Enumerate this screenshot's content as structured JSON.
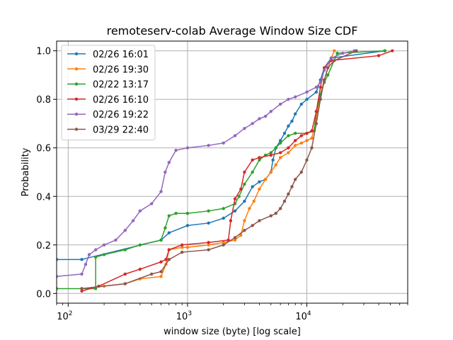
{
  "chart_data": {
    "type": "line",
    "title": "remoteserv-colab Average Window Size CDF",
    "xlabel": "window size (byte) [log scale]",
    "ylabel": "Probability",
    "xscale": "log",
    "xlim": [
      80,
      70000
    ],
    "ylim": [
      -0.04,
      1.04
    ],
    "xticks": [
      {
        "value": 100,
        "base": "10",
        "exp": "2"
      },
      {
        "value": 1000,
        "base": "10",
        "exp": "3"
      },
      {
        "value": 10000,
        "base": "10",
        "exp": "4"
      }
    ],
    "yticks": [
      {
        "value": 0.0,
        "label": "0.0"
      },
      {
        "value": 0.2,
        "label": "0.2"
      },
      {
        "value": 0.4,
        "label": "0.4"
      },
      {
        "value": 0.6,
        "label": "0.6"
      },
      {
        "value": 0.8,
        "label": "0.8"
      },
      {
        "value": 1.0,
        "label": "1.0"
      }
    ],
    "grid": true,
    "legend_position": "top-left",
    "series": [
      {
        "name": "02/26 16:01",
        "color": "#1f77b4",
        "points": [
          [
            80,
            0.14
          ],
          [
            130,
            0.14
          ],
          [
            600,
            0.22
          ],
          [
            700,
            0.25
          ],
          [
            1000,
            0.28
          ],
          [
            1500,
            0.29
          ],
          [
            2000,
            0.31
          ],
          [
            2500,
            0.34
          ],
          [
            3000,
            0.38
          ],
          [
            3500,
            0.44
          ],
          [
            4000,
            0.46
          ],
          [
            4500,
            0.47
          ],
          [
            5000,
            0.5
          ],
          [
            5200,
            0.55
          ],
          [
            5500,
            0.6
          ],
          [
            6000,
            0.63
          ],
          [
            6500,
            0.66
          ],
          [
            7000,
            0.69
          ],
          [
            7500,
            0.71
          ],
          [
            8000,
            0.74
          ],
          [
            9000,
            0.78
          ],
          [
            10000,
            0.8
          ],
          [
            12000,
            0.83
          ],
          [
            13000,
            0.88
          ],
          [
            14000,
            0.93
          ],
          [
            16000,
            0.97
          ],
          [
            45000,
            1.0
          ]
        ]
      },
      {
        "name": "02/26 19:30",
        "color": "#ff7f0e",
        "points": [
          [
            130,
            0.02
          ],
          [
            200,
            0.03
          ],
          [
            300,
            0.04
          ],
          [
            400,
            0.06
          ],
          [
            600,
            0.07
          ],
          [
            660,
            0.12
          ],
          [
            700,
            0.18
          ],
          [
            900,
            0.19
          ],
          [
            1000,
            0.19
          ],
          [
            1500,
            0.2
          ],
          [
            2000,
            0.21
          ],
          [
            2500,
            0.22
          ],
          [
            2800,
            0.24
          ],
          [
            3000,
            0.3
          ],
          [
            3300,
            0.35
          ],
          [
            3600,
            0.38
          ],
          [
            4000,
            0.43
          ],
          [
            4500,
            0.47
          ],
          [
            5000,
            0.5
          ],
          [
            5500,
            0.53
          ],
          [
            6000,
            0.56
          ],
          [
            7000,
            0.58
          ],
          [
            8000,
            0.61
          ],
          [
            9000,
            0.62
          ],
          [
            10000,
            0.63
          ],
          [
            11000,
            0.64
          ],
          [
            12000,
            0.72
          ],
          [
            13000,
            0.82
          ],
          [
            14000,
            0.88
          ],
          [
            16000,
            0.97
          ],
          [
            17000,
            1.0
          ]
        ]
      },
      {
        "name": "02/22 13:17",
        "color": "#2ca02c",
        "points": [
          [
            80,
            0.02
          ],
          [
            170,
            0.02
          ],
          [
            170,
            0.15
          ],
          [
            200,
            0.16
          ],
          [
            300,
            0.18
          ],
          [
            400,
            0.2
          ],
          [
            600,
            0.22
          ],
          [
            650,
            0.27
          ],
          [
            700,
            0.32
          ],
          [
            800,
            0.33
          ],
          [
            1000,
            0.33
          ],
          [
            1500,
            0.34
          ],
          [
            2000,
            0.35
          ],
          [
            2500,
            0.37
          ],
          [
            2700,
            0.4
          ],
          [
            3000,
            0.45
          ],
          [
            3500,
            0.5
          ],
          [
            4000,
            0.55
          ],
          [
            4500,
            0.57
          ],
          [
            5000,
            0.58
          ],
          [
            5500,
            0.6
          ],
          [
            6000,
            0.62
          ],
          [
            7000,
            0.65
          ],
          [
            8000,
            0.66
          ],
          [
            10000,
            0.66
          ],
          [
            11500,
            0.67
          ],
          [
            12000,
            0.75
          ],
          [
            13000,
            0.82
          ],
          [
            14000,
            0.87
          ],
          [
            15000,
            0.9
          ],
          [
            18000,
            0.99
          ],
          [
            45000,
            1.0
          ]
        ]
      },
      {
        "name": "02/26 16:10",
        "color": "#d62728",
        "points": [
          [
            130,
            0.01
          ],
          [
            180,
            0.03
          ],
          [
            300,
            0.08
          ],
          [
            400,
            0.1
          ],
          [
            600,
            0.13
          ],
          [
            660,
            0.14
          ],
          [
            700,
            0.18
          ],
          [
            900,
            0.2
          ],
          [
            1500,
            0.21
          ],
          [
            2200,
            0.22
          ],
          [
            2300,
            0.3
          ],
          [
            2500,
            0.39
          ],
          [
            2800,
            0.43
          ],
          [
            3000,
            0.5
          ],
          [
            3500,
            0.55
          ],
          [
            4000,
            0.56
          ],
          [
            5000,
            0.57
          ],
          [
            6000,
            0.58
          ],
          [
            7000,
            0.6
          ],
          [
            8000,
            0.63
          ],
          [
            9000,
            0.65
          ],
          [
            10000,
            0.66
          ],
          [
            11000,
            0.67
          ],
          [
            12000,
            0.75
          ],
          [
            13000,
            0.85
          ],
          [
            14000,
            0.93
          ],
          [
            16000,
            0.96
          ],
          [
            40000,
            0.98
          ],
          [
            52000,
            1.0
          ]
        ]
      },
      {
        "name": "02/26 19:22",
        "color": "#9467bd",
        "points": [
          [
            80,
            0.07
          ],
          [
            130,
            0.08
          ],
          [
            140,
            0.12
          ],
          [
            150,
            0.16
          ],
          [
            170,
            0.18
          ],
          [
            200,
            0.2
          ],
          [
            250,
            0.22
          ],
          [
            300,
            0.26
          ],
          [
            350,
            0.3
          ],
          [
            400,
            0.34
          ],
          [
            500,
            0.37
          ],
          [
            600,
            0.42
          ],
          [
            650,
            0.5
          ],
          [
            700,
            0.54
          ],
          [
            800,
            0.59
          ],
          [
            1000,
            0.6
          ],
          [
            1500,
            0.61
          ],
          [
            2000,
            0.62
          ],
          [
            2500,
            0.65
          ],
          [
            3000,
            0.68
          ],
          [
            3500,
            0.7
          ],
          [
            4000,
            0.72
          ],
          [
            4500,
            0.73
          ],
          [
            5000,
            0.75
          ],
          [
            6000,
            0.78
          ],
          [
            7000,
            0.8
          ],
          [
            8000,
            0.81
          ],
          [
            10000,
            0.83
          ],
          [
            12000,
            0.85
          ],
          [
            13000,
            0.87
          ],
          [
            14000,
            0.92
          ],
          [
            16000,
            0.97
          ],
          [
            20000,
            0.99
          ],
          [
            25000,
            1.0
          ]
        ]
      },
      {
        "name": "03/29 22:40",
        "color": "#8c564b",
        "points": [
          [
            130,
            0.02
          ],
          [
            300,
            0.04
          ],
          [
            500,
            0.08
          ],
          [
            600,
            0.09
          ],
          [
            700,
            0.14
          ],
          [
            900,
            0.17
          ],
          [
            1500,
            0.18
          ],
          [
            2000,
            0.2
          ],
          [
            2500,
            0.23
          ],
          [
            3000,
            0.26
          ],
          [
            3500,
            0.28
          ],
          [
            4000,
            0.3
          ],
          [
            5000,
            0.32
          ],
          [
            5500,
            0.33
          ],
          [
            6000,
            0.35
          ],
          [
            6500,
            0.38
          ],
          [
            7000,
            0.41
          ],
          [
            7500,
            0.44
          ],
          [
            8000,
            0.47
          ],
          [
            9000,
            0.5
          ],
          [
            10000,
            0.55
          ],
          [
            11000,
            0.6
          ],
          [
            12000,
            0.7
          ],
          [
            13000,
            0.8
          ],
          [
            14000,
            0.88
          ],
          [
            15000,
            0.93
          ],
          [
            17000,
            0.96
          ],
          [
            26000,
            1.0
          ]
        ]
      }
    ]
  }
}
